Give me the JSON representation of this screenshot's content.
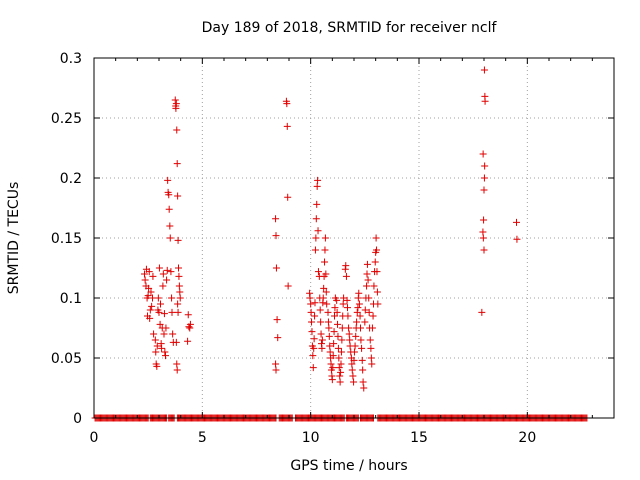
{
  "chart_data": {
    "type": "scatter",
    "title": "Day 189 of 2018, SRMTID for receiver nclf",
    "xlabel": "GPS time / hours",
    "ylabel": "SRMTID / TECUs",
    "xlim": [
      0,
      24
    ],
    "ylim": [
      0,
      0.3
    ],
    "xticks": [
      0,
      5,
      10,
      15,
      20
    ],
    "yticks": [
      0,
      0.05,
      0.1,
      0.15,
      0.2,
      0.25,
      0.3
    ],
    "xtick_labels": [
      "0",
      "5",
      "10",
      "15",
      "20"
    ],
    "ytick_labels": [
      "0",
      "0.05",
      "0.1",
      "0.15",
      "0.2",
      "0.25",
      "0.3"
    ],
    "grid": true,
    "marker": "+",
    "marker_color": "#e00000",
    "series": [
      {
        "name": "SRMTID",
        "points": [
          [
            2.33,
            0.12
          ],
          [
            2.36,
            0.115
          ],
          [
            2.4,
            0.11
          ],
          [
            2.42,
            0.124
          ],
          [
            2.45,
            0.1
          ],
          [
            2.47,
            0.085
          ],
          [
            2.5,
            0.102
          ],
          [
            2.52,
            0.108
          ],
          [
            2.55,
            0.122
          ],
          [
            2.57,
            0.083
          ],
          [
            2.6,
            0.09
          ],
          [
            2.63,
            0.105
          ],
          [
            2.66,
            0.093
          ],
          [
            2.7,
            0.1
          ],
          [
            2.72,
            0.118
          ],
          [
            2.75,
            0.07
          ],
          [
            2.83,
            0.065
          ],
          [
            2.85,
            0.055
          ],
          [
            2.87,
            0.045
          ],
          [
            2.9,
            0.043
          ],
          [
            2.92,
            0.06
          ],
          [
            2.95,
            0.09
          ],
          [
            2.97,
            0.1
          ],
          [
            3.0,
            0.088
          ],
          [
            3.02,
            0.125
          ],
          [
            3.05,
            0.078
          ],
          [
            3.07,
            0.095
          ],
          [
            3.1,
            0.062
          ],
          [
            3.12,
            0.058
          ],
          [
            3.15,
            0.075
          ],
          [
            3.18,
            0.11
          ],
          [
            3.2,
            0.12
          ],
          [
            3.23,
            0.07
          ],
          [
            3.25,
            0.087
          ],
          [
            3.27,
            0.055
          ],
          [
            3.3,
            0.052
          ],
          [
            3.32,
            0.075
          ],
          [
            3.35,
            0.115
          ],
          [
            3.38,
            0.123
          ],
          [
            3.4,
            0.198
          ],
          [
            3.42,
            0.188
          ],
          [
            3.45,
            0.186
          ],
          [
            3.47,
            0.174
          ],
          [
            3.5,
            0.16
          ],
          [
            3.52,
            0.15
          ],
          [
            3.55,
            0.122
          ],
          [
            3.58,
            0.1
          ],
          [
            3.6,
            0.088
          ],
          [
            3.63,
            0.07
          ],
          [
            3.66,
            0.063
          ],
          [
            3.75,
            0.265
          ],
          [
            3.77,
            0.26
          ],
          [
            3.78,
            0.258
          ],
          [
            3.8,
            0.262
          ],
          [
            3.82,
            0.24
          ],
          [
            3.84,
            0.212
          ],
          [
            3.86,
            0.185
          ],
          [
            3.88,
            0.148
          ],
          [
            3.9,
            0.125
          ],
          [
            3.92,
            0.118
          ],
          [
            3.94,
            0.11
          ],
          [
            3.96,
            0.105
          ],
          [
            3.98,
            0.1
          ],
          [
            3.8,
            0.063
          ],
          [
            3.82,
            0.045
          ],
          [
            3.84,
            0.04
          ],
          [
            3.86,
            0.095
          ],
          [
            3.88,
            0.088
          ],
          [
            4.35,
            0.086
          ],
          [
            4.38,
            0.076
          ],
          [
            4.42,
            0.075
          ],
          [
            4.45,
            0.078
          ],
          [
            4.32,
            0.064
          ],
          [
            8.38,
            0.166
          ],
          [
            8.4,
            0.152
          ],
          [
            8.42,
            0.125
          ],
          [
            8.45,
            0.082
          ],
          [
            8.48,
            0.067
          ],
          [
            8.38,
            0.045
          ],
          [
            8.4,
            0.04
          ],
          [
            8.88,
            0.264
          ],
          [
            8.9,
            0.262
          ],
          [
            8.92,
            0.243
          ],
          [
            8.94,
            0.184
          ],
          [
            8.96,
            0.11
          ],
          [
            9.95,
            0.104
          ],
          [
            9.97,
            0.1
          ],
          [
            10.0,
            0.095
          ],
          [
            10.02,
            0.088
          ],
          [
            10.04,
            0.08
          ],
          [
            10.06,
            0.072
          ],
          [
            10.08,
            0.06
          ],
          [
            10.1,
            0.052
          ],
          [
            10.12,
            0.042
          ],
          [
            10.14,
            0.058
          ],
          [
            10.16,
            0.066
          ],
          [
            10.18,
            0.085
          ],
          [
            10.2,
            0.096
          ],
          [
            10.22,
            0.14
          ],
          [
            10.24,
            0.15
          ],
          [
            10.26,
            0.166
          ],
          [
            10.28,
            0.178
          ],
          [
            10.3,
            0.193
          ],
          [
            10.32,
            0.198
          ],
          [
            10.34,
            0.156
          ],
          [
            10.36,
            0.122
          ],
          [
            10.4,
            0.118
          ],
          [
            10.42,
            0.1
          ],
          [
            10.44,
            0.09
          ],
          [
            10.46,
            0.08
          ],
          [
            10.48,
            0.07
          ],
          [
            10.5,
            0.062
          ],
          [
            10.52,
            0.058
          ],
          [
            10.54,
            0.065
          ],
          [
            10.56,
            0.096
          ],
          [
            10.58,
            0.1
          ],
          [
            10.6,
            0.108
          ],
          [
            10.62,
            0.118
          ],
          [
            10.64,
            0.13
          ],
          [
            10.66,
            0.14
          ],
          [
            10.68,
            0.15
          ],
          [
            10.7,
            0.12
          ],
          [
            10.72,
            0.105
          ],
          [
            10.74,
            0.095
          ],
          [
            10.8,
            0.088
          ],
          [
            10.82,
            0.08
          ],
          [
            10.84,
            0.075
          ],
          [
            10.86,
            0.068
          ],
          [
            10.88,
            0.06
          ],
          [
            10.9,
            0.055
          ],
          [
            10.92,
            0.05
          ],
          [
            10.94,
            0.045
          ],
          [
            10.96,
            0.04
          ],
          [
            10.98,
            0.035
          ],
          [
            11.0,
            0.032
          ],
          [
            11.02,
            0.042
          ],
          [
            11.04,
            0.052
          ],
          [
            11.06,
            0.062
          ],
          [
            11.08,
            0.072
          ],
          [
            11.1,
            0.085
          ],
          [
            11.12,
            0.092
          ],
          [
            11.14,
            0.1
          ],
          [
            11.2,
            0.098
          ],
          [
            11.22,
            0.088
          ],
          [
            11.24,
            0.078
          ],
          [
            11.26,
            0.068
          ],
          [
            11.28,
            0.058
          ],
          [
            11.3,
            0.05
          ],
          [
            11.32,
            0.042
          ],
          [
            11.34,
            0.035
          ],
          [
            11.36,
            0.03
          ],
          [
            11.38,
            0.038
          ],
          [
            11.4,
            0.045
          ],
          [
            11.42,
            0.055
          ],
          [
            11.44,
            0.065
          ],
          [
            11.46,
            0.075
          ],
          [
            11.48,
            0.085
          ],
          [
            11.5,
            0.095
          ],
          [
            11.52,
            0.1
          ],
          [
            11.6,
            0.124
          ],
          [
            11.62,
            0.127
          ],
          [
            11.65,
            0.118
          ],
          [
            11.68,
            0.098
          ],
          [
            11.7,
            0.092
          ],
          [
            11.72,
            0.085
          ],
          [
            11.75,
            0.075
          ],
          [
            11.78,
            0.07
          ],
          [
            11.8,
            0.065
          ],
          [
            11.82,
            0.06
          ],
          [
            11.85,
            0.055
          ],
          [
            11.88,
            0.05
          ],
          [
            11.9,
            0.045
          ],
          [
            11.92,
            0.04
          ],
          [
            11.95,
            0.035
          ],
          [
            11.98,
            0.03
          ],
          [
            12.0,
            0.048
          ],
          [
            12.02,
            0.055
          ],
          [
            12.05,
            0.06
          ],
          [
            12.08,
            0.068
          ],
          [
            12.1,
            0.075
          ],
          [
            12.12,
            0.08
          ],
          [
            12.15,
            0.088
          ],
          [
            12.18,
            0.092
          ],
          [
            12.2,
            0.1
          ],
          [
            12.22,
            0.104
          ],
          [
            12.25,
            0.095
          ],
          [
            12.28,
            0.085
          ],
          [
            12.3,
            0.075
          ],
          [
            12.32,
            0.065
          ],
          [
            12.35,
            0.058
          ],
          [
            12.38,
            0.048
          ],
          [
            12.4,
            0.04
          ],
          [
            12.42,
            0.03
          ],
          [
            12.45,
            0.025
          ],
          [
            12.5,
            0.08
          ],
          [
            12.52,
            0.09
          ],
          [
            12.55,
            0.1
          ],
          [
            12.58,
            0.11
          ],
          [
            12.6,
            0.12
          ],
          [
            12.62,
            0.128
          ],
          [
            12.65,
            0.115
          ],
          [
            12.68,
            0.1
          ],
          [
            12.7,
            0.088
          ],
          [
            12.72,
            0.075
          ],
          [
            12.75,
            0.065
          ],
          [
            12.78,
            0.058
          ],
          [
            12.8,
            0.05
          ],
          [
            12.82,
            0.045
          ],
          [
            12.85,
            0.075
          ],
          [
            12.88,
            0.085
          ],
          [
            12.9,
            0.095
          ],
          [
            12.92,
            0.11
          ],
          [
            12.95,
            0.122
          ],
          [
            12.98,
            0.13
          ],
          [
            13.0,
            0.138
          ],
          [
            13.02,
            0.15
          ],
          [
            13.04,
            0.14
          ],
          [
            13.06,
            0.122
          ],
          [
            13.08,
            0.105
          ],
          [
            13.1,
            0.095
          ],
          [
            17.9,
            0.088
          ],
          [
            17.95,
            0.155
          ],
          [
            17.97,
            0.15
          ],
          [
            17.98,
            0.165
          ],
          [
            18.0,
            0.14
          ],
          [
            18.0,
            0.19
          ],
          [
            18.02,
            0.2
          ],
          [
            18.03,
            0.21
          ],
          [
            17.96,
            0.22
          ],
          [
            18.05,
            0.264
          ],
          [
            18.04,
            0.268
          ],
          [
            18.02,
            0.29
          ],
          [
            19.5,
            0.163
          ],
          [
            19.52,
            0.149
          ]
        ],
        "zero_ranges": [
          [
            0.05,
            2.5
          ],
          [
            2.6,
            3.35
          ],
          [
            3.45,
            3.7
          ],
          [
            3.85,
            8.4
          ],
          [
            8.55,
            9.15
          ],
          [
            9.3,
            11.55
          ],
          [
            11.65,
            12.2
          ],
          [
            12.3,
            12.55
          ],
          [
            12.6,
            12.9
          ],
          [
            13.1,
            22.75
          ]
        ]
      }
    ]
  }
}
